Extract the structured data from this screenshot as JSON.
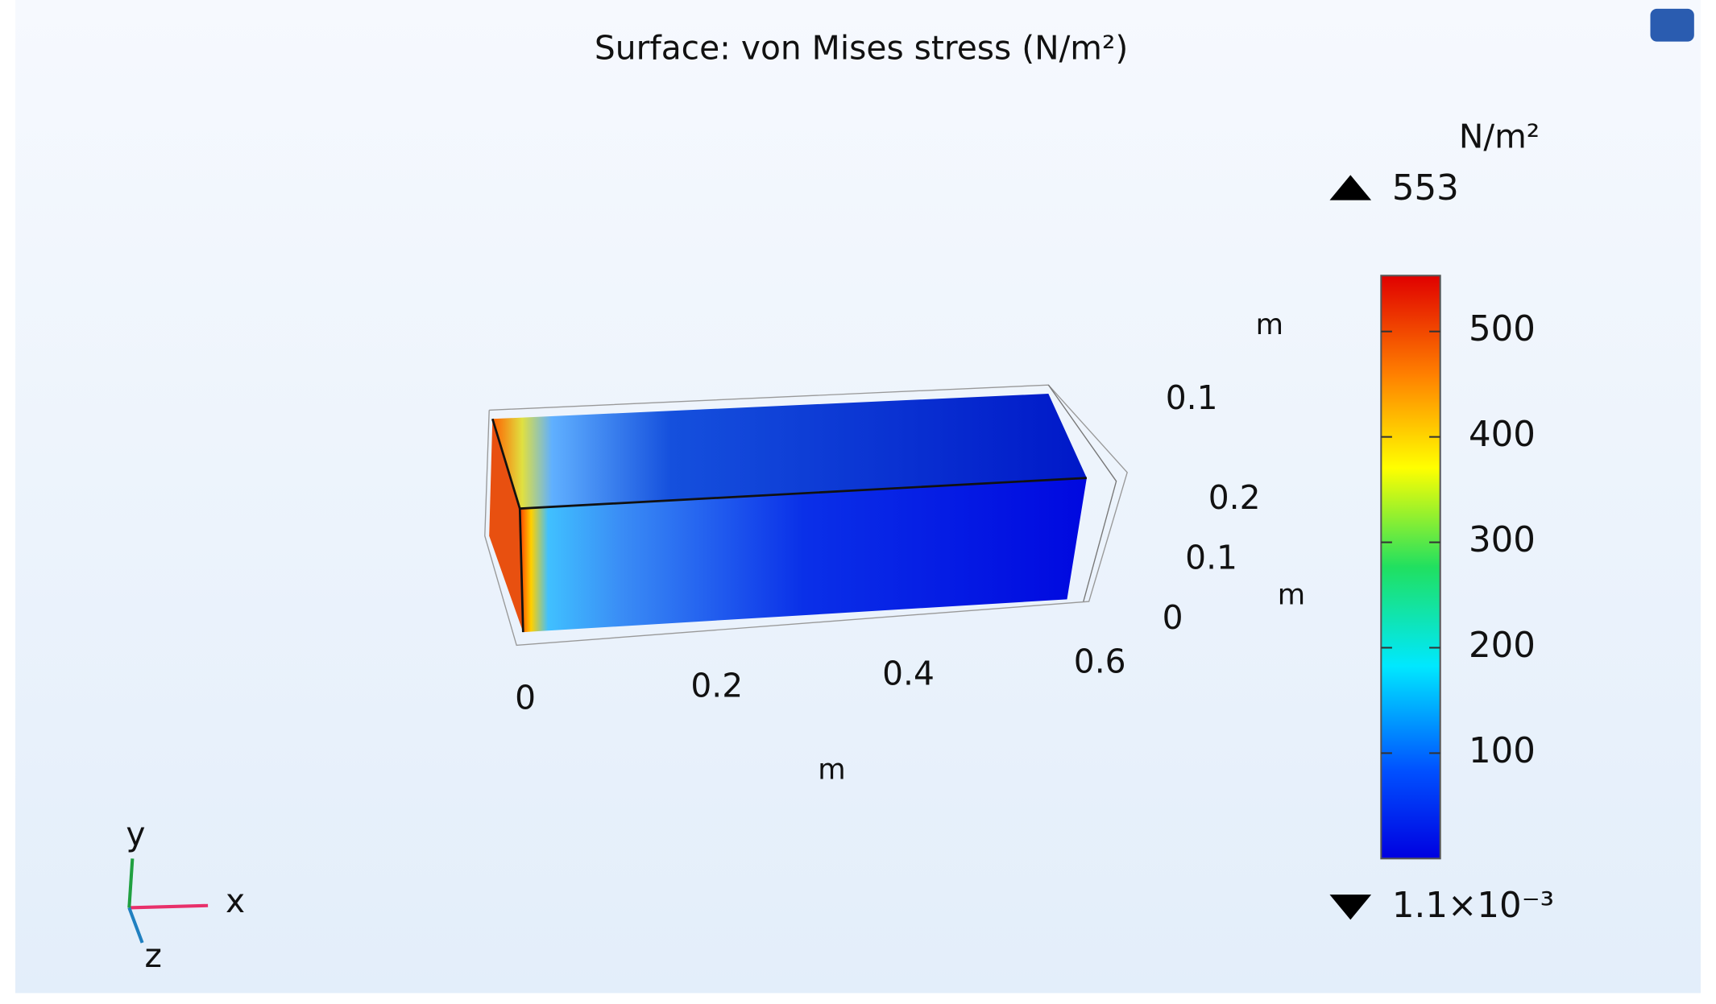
{
  "chart_data": {
    "type": "surface3d",
    "title": "Surface: von Mises stress (N/m²)",
    "colorbar": {
      "unit": "N/m²",
      "lim": [
        0.0011,
        553
      ],
      "ticks": [
        100,
        200,
        300,
        400,
        500
      ],
      "max_label": 553,
      "min_label": {
        "value": 0.0011,
        "label": "1.1×10⁻³"
      }
    },
    "x_axis": {
      "label": "m",
      "ticks": [
        0,
        0.2,
        0.4,
        0.6
      ]
    },
    "y_axis": {
      "label": "m",
      "ticks": [
        0,
        0.1,
        0.2
      ]
    },
    "z_axis": {
      "label": "m",
      "ticks": [
        0.1
      ]
    },
    "triad": [
      "x",
      "y",
      "z"
    ]
  }
}
